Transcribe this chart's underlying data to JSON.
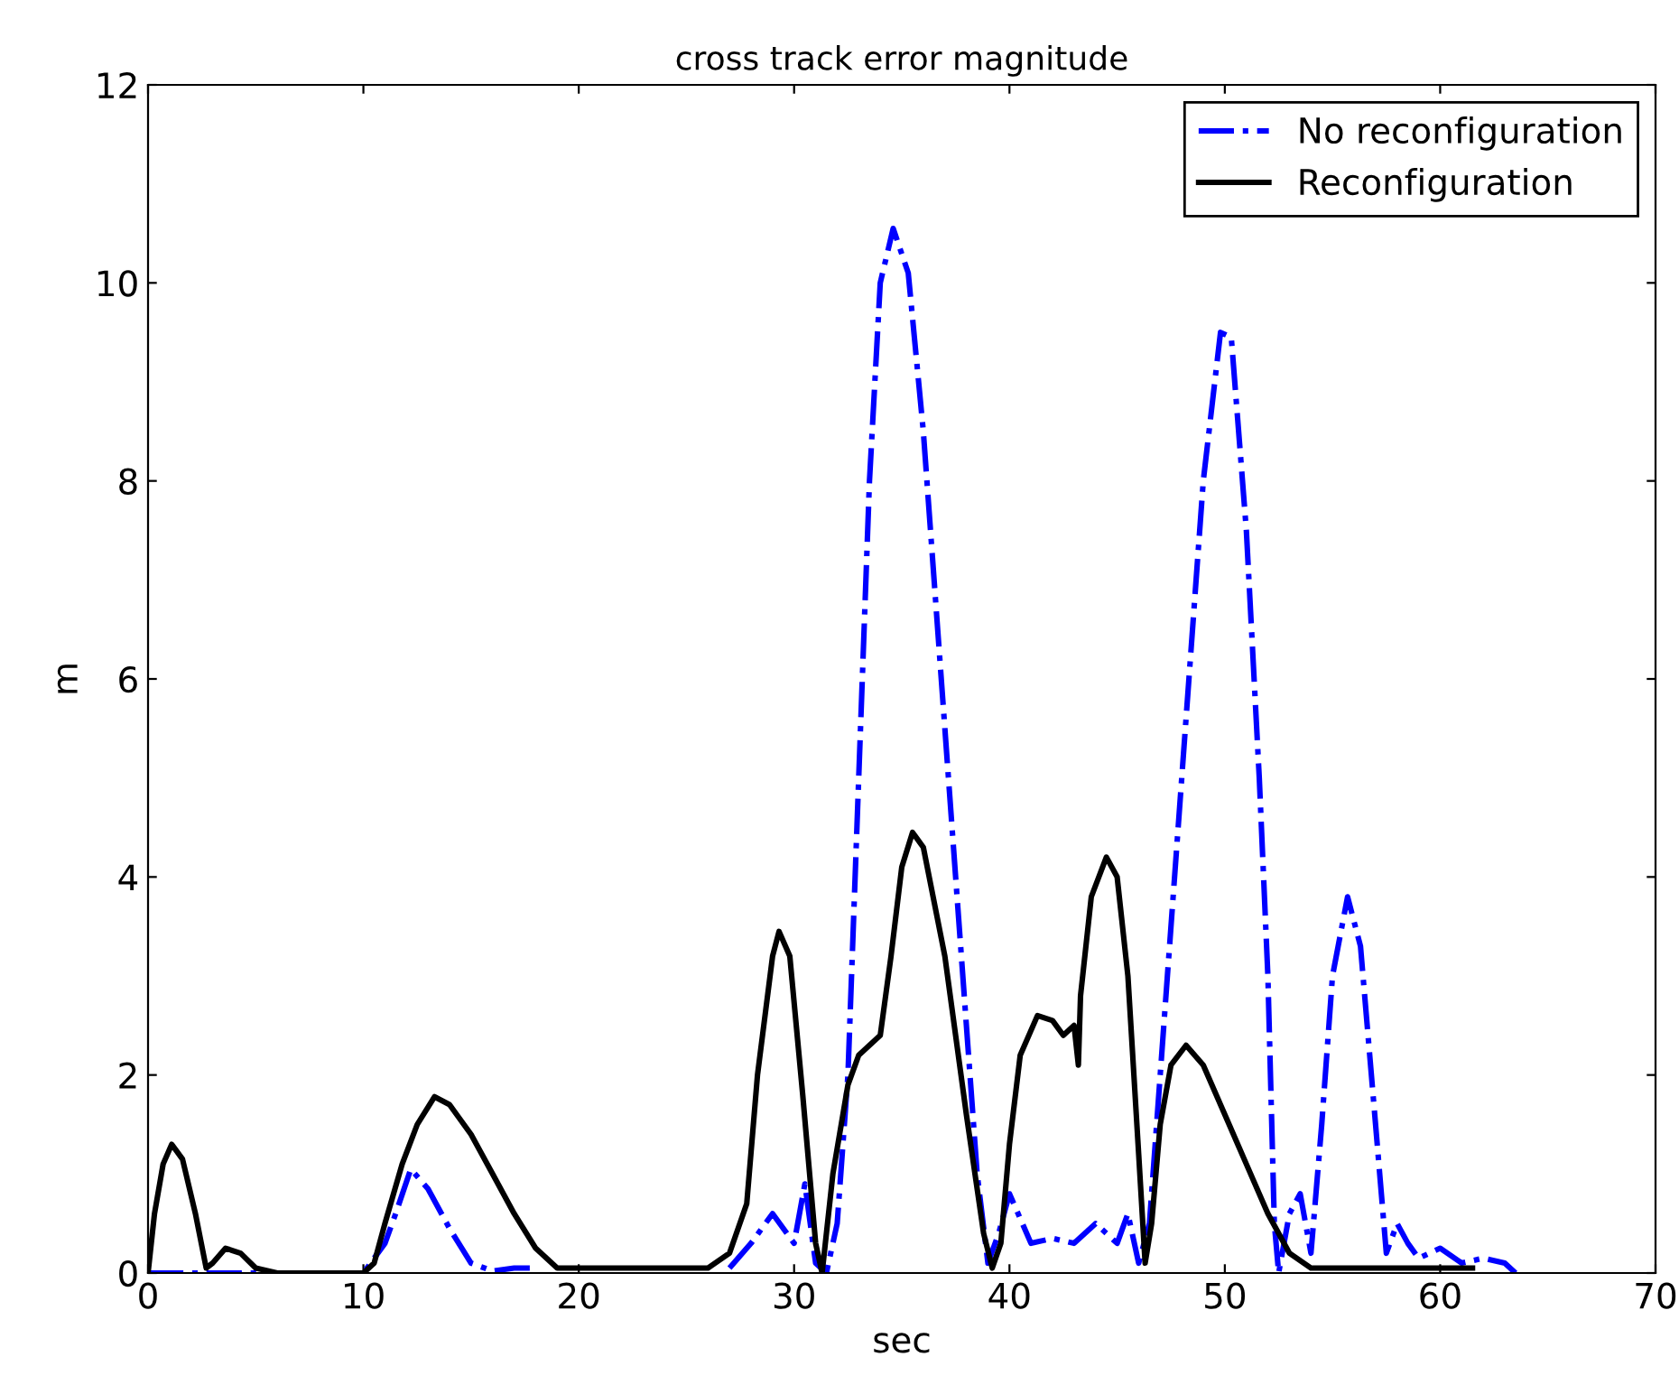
{
  "chart_data": {
    "type": "line",
    "title": "cross track error magnitude",
    "xlabel": "sec",
    "ylabel": "m",
    "xlim": [
      0,
      70
    ],
    "ylim": [
      0,
      12
    ],
    "xticks": [
      0,
      10,
      20,
      30,
      40,
      50,
      60,
      70
    ],
    "yticks": [
      0,
      2,
      4,
      6,
      8,
      10,
      12
    ],
    "grid": false,
    "legend": "top right",
    "marker": "none",
    "series": [
      {
        "name": "No reconfiguration",
        "color": "#0000ff",
        "line_style": "dashdot",
        "x": [
          0,
          10,
          11,
          11.5,
          12.2,
          13,
          14,
          15,
          16,
          17,
          18,
          20,
          27,
          28,
          29,
          30,
          30.5,
          31,
          31.5,
          32,
          32.5,
          33,
          33.5,
          34,
          34.6,
          35.3,
          36,
          37,
          38,
          38.5,
          39,
          39.5,
          40,
          41,
          42,
          43,
          44,
          45,
          45.5,
          46,
          46.5,
          47,
          48,
          49,
          49.8,
          50.3,
          51,
          51.6,
          52,
          52.3,
          52.5,
          53,
          53.5,
          54,
          54.5,
          55,
          55.7,
          56.3,
          57,
          57.5,
          58,
          58.5,
          59,
          60,
          61,
          62,
          63,
          63.5
        ],
        "values": [
          0,
          0,
          0.3,
          0.6,
          1.05,
          0.85,
          0.45,
          0.1,
          0.02,
          0.05,
          0.05,
          null,
          0.05,
          0.3,
          0.6,
          0.3,
          0.9,
          0.1,
          0,
          0.5,
          2,
          5,
          8,
          10,
          10.55,
          10.1,
          8.5,
          5.5,
          2.5,
          1,
          0.1,
          0.4,
          0.8,
          0.3,
          0.35,
          0.3,
          0.5,
          0.3,
          0.6,
          0.1,
          0.5,
          2,
          5,
          8,
          9.5,
          9.45,
          7.5,
          5,
          3,
          0.5,
          0,
          0.6,
          0.8,
          0.2,
          1.5,
          3,
          3.8,
          3.3,
          1.5,
          0.2,
          0.5,
          0.3,
          0.15,
          0.25,
          0.1,
          0.15,
          0.1,
          0
        ]
      },
      {
        "name": "Reconfiguration",
        "color": "#000000",
        "line_style": "solid",
        "x": [
          0,
          0.3,
          0.7,
          1.1,
          1.6,
          2.2,
          2.7,
          3,
          3.6,
          4.3,
          5,
          6,
          10,
          10.5,
          11,
          11.8,
          12.5,
          13.3,
          14,
          15,
          16,
          17,
          18,
          19,
          20,
          26,
          27,
          27.8,
          28.3,
          29,
          29.3,
          29.8,
          30.4,
          31,
          31.3,
          31.8,
          32.5,
          33,
          34,
          34.5,
          35,
          35.5,
          36,
          37,
          38,
          38.8,
          39.2,
          39.6,
          40,
          40.5,
          41.3,
          42,
          42.5,
          43,
          43.2,
          43.3,
          43.8,
          44.5,
          45,
          45.5,
          46,
          46.3,
          46.6,
          47,
          47.5,
          48.2,
          49,
          50,
          51,
          52,
          53,
          54,
          56,
          61.5
        ],
        "values": [
          0,
          0.6,
          1.1,
          1.3,
          1.15,
          0.6,
          0.05,
          0.1,
          0.25,
          0.2,
          0.05,
          0,
          0,
          0.1,
          0.5,
          1.1,
          1.5,
          1.78,
          1.7,
          1.4,
          1,
          0.6,
          0.25,
          0.05,
          0.05,
          0.05,
          0.2,
          0.7,
          2,
          3.2,
          3.45,
          3.2,
          1.8,
          0.3,
          0,
          1,
          1.9,
          2.2,
          2.4,
          3.2,
          4.1,
          4.45,
          4.3,
          3.2,
          1.6,
          0.4,
          0.05,
          0.3,
          1.3,
          2.2,
          2.6,
          2.55,
          2.4,
          2.5,
          2.1,
          2.8,
          3.8,
          4.2,
          4,
          3,
          1.2,
          0.1,
          0.5,
          1.5,
          2.1,
          2.3,
          2.1,
          1.6,
          1.1,
          0.6,
          0.2,
          0.05,
          0.05,
          0.05
        ]
      }
    ]
  }
}
